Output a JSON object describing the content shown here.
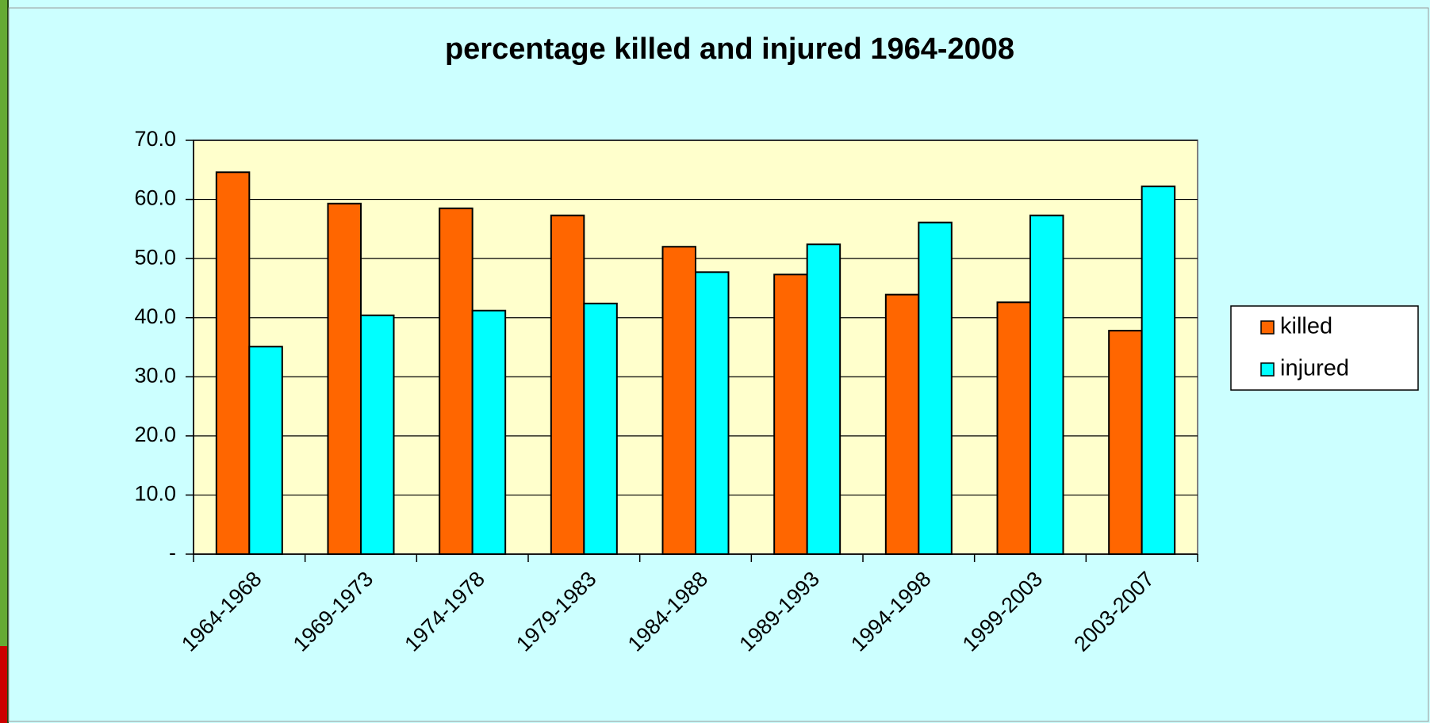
{
  "chart_data": {
    "type": "bar",
    "title": "percentage killed and injured 1964-2008",
    "categories": [
      "1964-1968",
      "1969-1973",
      "1974-1978",
      "1979-1983",
      "1984-1988",
      "1989-1993",
      "1994-1998",
      "1999-2003",
      "2003-2007"
    ],
    "series": [
      {
        "name": "killed",
        "color": "#ff6600",
        "values": [
          64.6,
          59.3,
          58.5,
          57.3,
          52.0,
          47.3,
          43.9,
          42.6,
          37.8
        ]
      },
      {
        "name": "injured",
        "color": "#00ffff",
        "values": [
          35.1,
          40.4,
          41.2,
          42.4,
          47.7,
          52.4,
          56.1,
          57.3,
          62.2
        ]
      }
    ],
    "ylim": [
      0,
      70
    ],
    "yticks": [
      {
        "value": 0,
        "label": "-"
      },
      {
        "value": 10,
        "label": "10.0"
      },
      {
        "value": 20,
        "label": "20.0"
      },
      {
        "value": 30,
        "label": "30.0"
      },
      {
        "value": 40,
        "label": "40.0"
      },
      {
        "value": 50,
        "label": "50.0"
      },
      {
        "value": 60,
        "label": "60.0"
      },
      {
        "value": 70,
        "label": "70.0"
      }
    ],
    "grid": true,
    "legend": "right"
  }
}
